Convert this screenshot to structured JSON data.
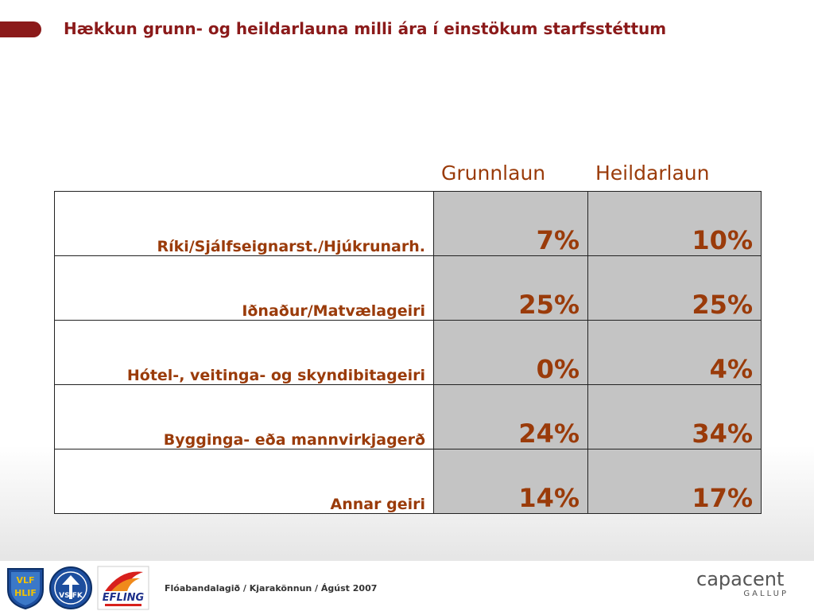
{
  "title": "Hækkun grunn- og heildarlauna milli ára í einstökum starfsstéttum",
  "columns": [
    "Grunnlaun",
    "Heildarlaun"
  ],
  "rows": [
    {
      "label": "Ríki/Sjálfseignarst./Hjúkrunarh.",
      "grunnlaun": "7%",
      "heildarlaun": "10%"
    },
    {
      "label": "Iðnaður/Matvælageiri",
      "grunnlaun": "25%",
      "heildarlaun": "25%"
    },
    {
      "label": "Hótel-, veitinga- og skyndibitageiri",
      "grunnlaun": "0%",
      "heildarlaun": "4%"
    },
    {
      "label": "Bygginga- eða mannvirkjagerð",
      "grunnlaun": "24%",
      "heildarlaun": "34%"
    },
    {
      "label": "Annar geiri",
      "grunnlaun": "14%",
      "heildarlaun": "17%"
    }
  ],
  "footer": {
    "text": "Flóabandalagið  / Kjarakönnun / Ágúst 2007",
    "logos": {
      "vlf": [
        "VLF",
        "HLIF"
      ],
      "vsfk": "VS FK",
      "efling": "EFLING"
    },
    "brand": {
      "name": "capacent",
      "sub": "GALLUP"
    }
  },
  "colors": {
    "accent": "#8b1a1a",
    "text": "#9a3b0a",
    "cell": "#c4c4c4"
  }
}
